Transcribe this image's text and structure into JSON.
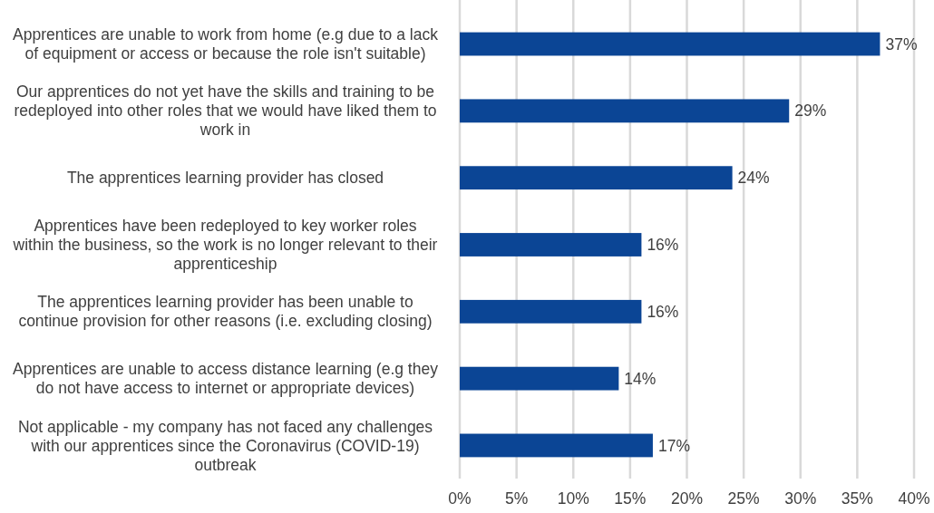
{
  "chart_data": {
    "type": "bar",
    "orientation": "horizontal",
    "categories": [
      "Apprentices are unable to work from home (e.g due to a lack of equipment or access or because the role isn't suitable)",
      "Our apprentices do not yet have the skills and training to be redeployed into other roles that we would have liked them to work in",
      "The apprentices learning provider has closed",
      "Apprentices have been redeployed to key worker roles within the business, so the work is no longer relevant to their apprenticeship",
      "The apprentices learning provider has been unable to continue provision for other reasons (i.e. excluding closing)",
      "Apprentices are unable to access distance learning (e.g they do not have access to internet or appropriate devices)",
      "Not applicable - my company has not faced any challenges with our apprentices since the Coronavirus (COVID-19) outbreak"
    ],
    "values": [
      37,
      29,
      24,
      16,
      16,
      14,
      17
    ],
    "value_labels": [
      "37%",
      "29%",
      "24%",
      "16%",
      "16%",
      "14%",
      "17%"
    ],
    "color": "#0b4595",
    "xlim": [
      0,
      40
    ],
    "xticks": [
      {
        "value": 0,
        "label": "0%"
      },
      {
        "value": 5,
        "label": "5%"
      },
      {
        "value": 10,
        "label": "10%"
      },
      {
        "value": 15,
        "label": "15%"
      },
      {
        "value": 20,
        "label": "20%"
      },
      {
        "value": 25,
        "label": "25%"
      },
      {
        "value": 30,
        "label": "30%"
      },
      {
        "value": 35,
        "label": "35%"
      },
      {
        "value": 40,
        "label": "40%"
      }
    ],
    "grid": "x"
  }
}
